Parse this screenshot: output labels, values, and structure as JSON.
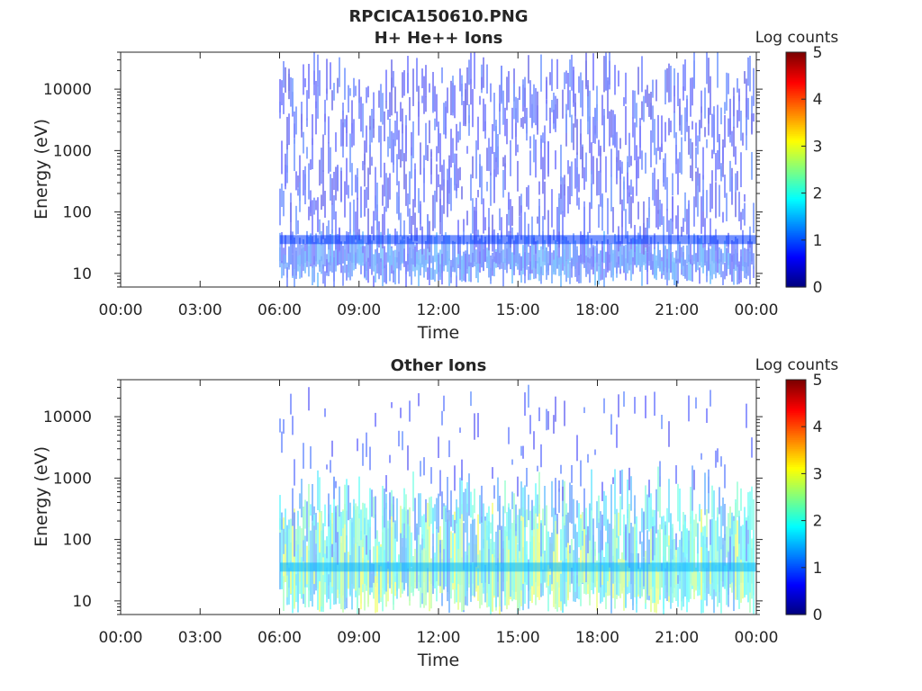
{
  "figure": {
    "title_file": "RPCICA150610.PNG"
  },
  "chart_data": [
    {
      "type": "heatmap",
      "title": "H+ He++ Ions",
      "xlabel": "Time",
      "ylabel": "Energy (eV)",
      "x_ticks": [
        "00:00",
        "03:00",
        "06:00",
        "09:00",
        "12:00",
        "15:00",
        "18:00",
        "21:00",
        "00:00"
      ],
      "xlim_hours": [
        0,
        24
      ],
      "y_scale": "log",
      "y_ticks": [
        "10",
        "100",
        "1000",
        "10000"
      ],
      "ylim": [
        6,
        40000
      ],
      "data_start_hour": 6.0,
      "data_end_hour": 24.0,
      "colorbar": {
        "label": "Log counts",
        "ticks": [
          "0",
          "1",
          "2",
          "3",
          "4",
          "5"
        ],
        "range": [
          0,
          5
        ],
        "colormap": "jet"
      }
    },
    {
      "type": "heatmap",
      "title": "Other Ions",
      "xlabel": "Time",
      "ylabel": "Energy (eV)",
      "x_ticks": [
        "00:00",
        "03:00",
        "06:00",
        "09:00",
        "12:00",
        "15:00",
        "18:00",
        "21:00",
        "00:00"
      ],
      "xlim_hours": [
        0,
        24
      ],
      "y_scale": "log",
      "y_ticks": [
        "10",
        "100",
        "1000",
        "10000"
      ],
      "ylim": [
        6,
        40000
      ],
      "data_start_hour": 6.0,
      "data_end_hour": 24.0,
      "colorbar": {
        "label": "Log counts",
        "ticks": [
          "0",
          "1",
          "2",
          "3",
          "4",
          "5"
        ],
        "range": [
          0,
          5
        ],
        "colormap": "jet"
      }
    }
  ]
}
